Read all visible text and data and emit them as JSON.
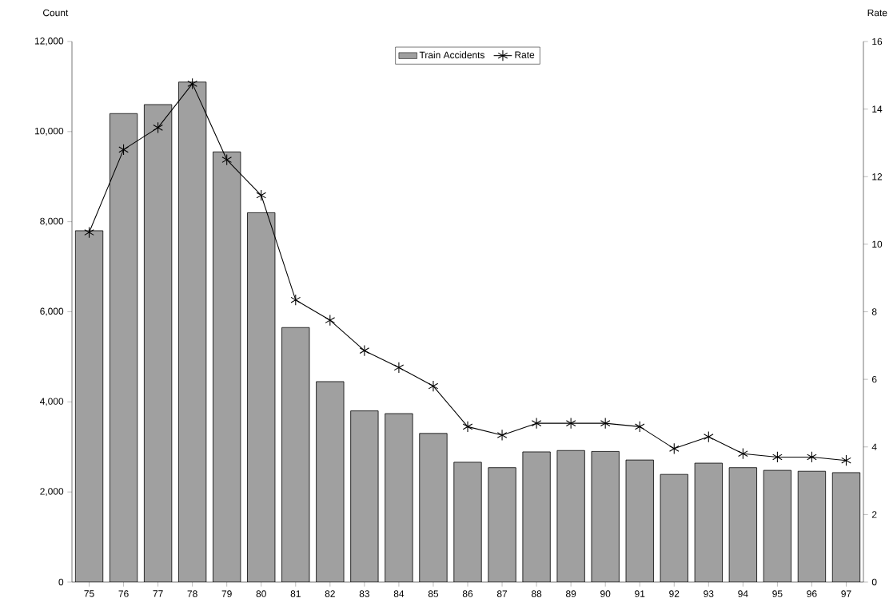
{
  "chart_data": {
    "type": "bar",
    "categories": [
      "75",
      "76",
      "77",
      "78",
      "79",
      "80",
      "81",
      "82",
      "83",
      "84",
      "85",
      "86",
      "87",
      "88",
      "89",
      "90",
      "91",
      "92",
      "93",
      "94",
      "95",
      "96",
      "97"
    ],
    "series": [
      {
        "name": "Train Accidents",
        "color": "#a0a0a0",
        "values": [
          7800,
          10400,
          10600,
          11100,
          9550,
          8200,
          5650,
          4450,
          3800,
          3740,
          3300,
          2660,
          2540,
          2890,
          2920,
          2900,
          2710,
          2390,
          2640,
          2540,
          2480,
          2460,
          2430
        ]
      },
      {
        "name": "Rate",
        "type": "line",
        "axis": "y2",
        "color": "#000000",
        "marker": "cross",
        "values": [
          10.35,
          12.8,
          13.45,
          14.75,
          12.5,
          11.45,
          8.35,
          7.75,
          6.85,
          6.35,
          5.8,
          4.6,
          4.35,
          4.7,
          4.7,
          4.7,
          4.6,
          3.95,
          4.3,
          3.8,
          3.7,
          3.7,
          3.6
        ]
      }
    ],
    "ylabel": "Count",
    "y2label": "Rate",
    "ylim": [
      0,
      12000
    ],
    "yticks": [
      0,
      {
        "value": 2000,
        "label": "2,000"
      },
      {
        "value": 4000,
        "label": "4,000"
      },
      {
        "value": 6000,
        "label": "6,000"
      },
      {
        "value": 8000,
        "label": "8,000"
      },
      {
        "value": 10000,
        "label": "10,000"
      },
      {
        "value": 12000,
        "label": "12,000"
      }
    ],
    "y2lim": [
      0,
      16
    ],
    "y2ticks": [
      0,
      2,
      4,
      6,
      8,
      10,
      12,
      14,
      16
    ],
    "legend": "top",
    "grid": false
  }
}
